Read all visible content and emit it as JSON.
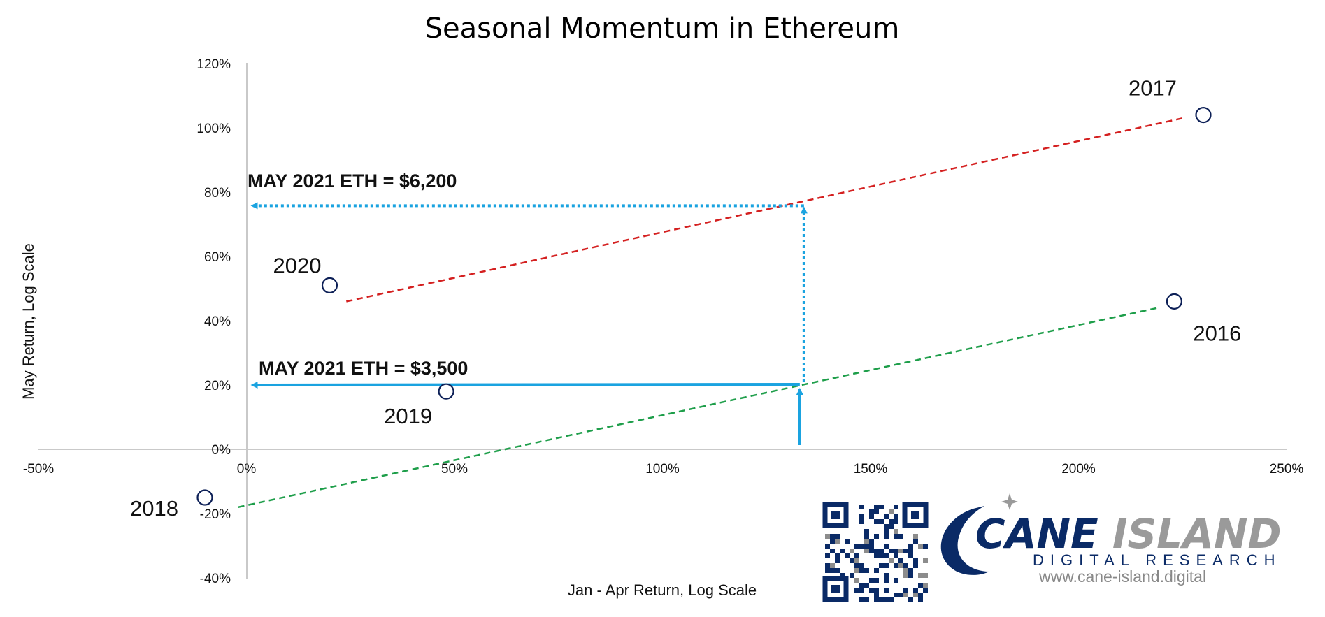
{
  "chart_data": {
    "type": "scatter",
    "title": "Seasonal Momentum in Ethereum",
    "xlabel": "Jan - Apr Return, Log Scale",
    "ylabel": "May Return, Log Scale",
    "xlim": [
      -50,
      250
    ],
    "ylim": [
      -40,
      120
    ],
    "x_ticks": [
      -50,
      0,
      50,
      100,
      150,
      200,
      250
    ],
    "y_ticks": [
      -40,
      -20,
      0,
      20,
      40,
      60,
      80,
      100,
      120
    ],
    "tick_suffix": "%",
    "grid": false,
    "points": [
      {
        "label": "2017",
        "x": 230,
        "y": 104
      },
      {
        "label": "2020",
        "x": 20,
        "y": 51
      },
      {
        "label": "2016",
        "x": 223,
        "y": 46
      },
      {
        "label": "2019",
        "x": 48,
        "y": 18
      },
      {
        "label": "2018",
        "x": -10,
        "y": -15
      }
    ],
    "trendlines": [
      {
        "color": "#d42020",
        "from": [
          24,
          46
        ],
        "to": [
          225,
          103
        ]
      },
      {
        "color": "#1e9e4a",
        "from": [
          -2,
          -18
        ],
        "to": [
          219,
          44
        ]
      }
    ],
    "annotations": [
      {
        "text": "MAY 2021 ETH = $6,200",
        "x0": 133,
        "y_target": 76,
        "style": "dotted"
      },
      {
        "text": "MAY 2021 ETH = $3,500",
        "x0": 133,
        "y_target": 20,
        "style": "solid"
      }
    ],
    "arrow_color": "#1aa3e0"
  },
  "logo": {
    "name": "CANE ISLAND",
    "subtitle": "DIGITAL RESEARCH",
    "url": "www.cane-island.digital",
    "primary_color": "#0a2a66",
    "secondary_color": "#9a9a9a"
  }
}
